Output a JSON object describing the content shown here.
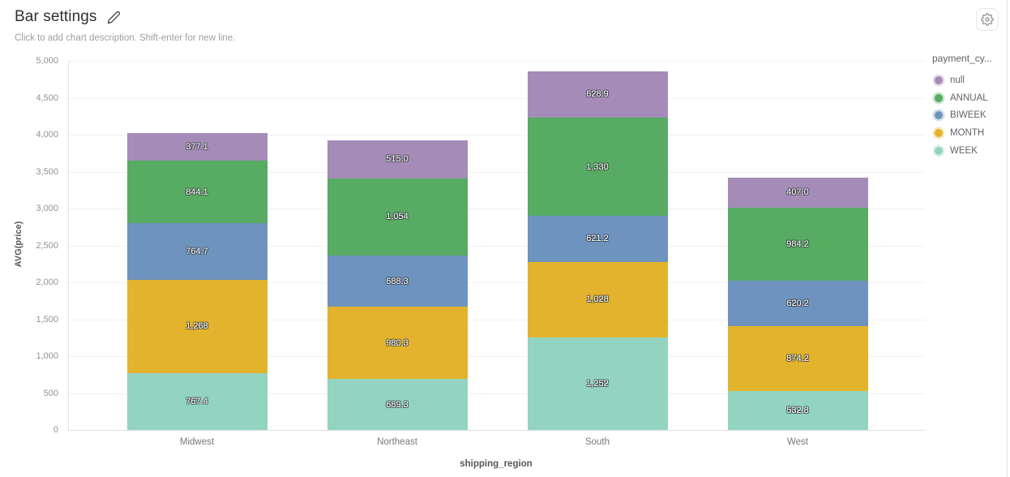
{
  "header": {
    "title": "Bar settings",
    "description": "Click to add chart description. Shift-enter for new line."
  },
  "toolbar": {
    "settings_icon": "gear-icon",
    "edit_icon": "pencil-icon"
  },
  "legend": {
    "title": "payment_cy...",
    "position": "right",
    "items": [
      {
        "label": "null",
        "color": "#a58cb8"
      },
      {
        "label": "ANNUAL",
        "color": "#57ab63"
      },
      {
        "label": "BIWEEK",
        "color": "#6e93be"
      },
      {
        "label": "MONTH",
        "color": "#e3b32d"
      },
      {
        "label": "WEEK",
        "color": "#92d4c0"
      }
    ]
  },
  "chart_data": {
    "type": "bar",
    "stacked": true,
    "title": "Bar settings",
    "categories": [
      "Midwest",
      "Northeast",
      "South",
      "West"
    ],
    "xlabel": "shipping_region",
    "ylabel": "AVG(price)",
    "ylim": [
      0,
      5000
    ],
    "ytick_step": 500,
    "grid": true,
    "legend_position": "right",
    "series": [
      {
        "name": "WEEK",
        "color": "#92d4c0",
        "values": [
          767.4,
          689.3,
          1252,
          532.8
        ],
        "labels": [
          "767.4",
          "689.3",
          "1,252",
          "532.8"
        ]
      },
      {
        "name": "MONTH",
        "color": "#e3b32d",
        "values": [
          1268,
          980.3,
          1028,
          874.2
        ],
        "labels": [
          "1,268",
          "980.3",
          "1,028",
          "874.2"
        ]
      },
      {
        "name": "BIWEEK",
        "color": "#6e93be",
        "values": [
          764.7,
          688.3,
          621.2,
          620.2
        ],
        "labels": [
          "764.7",
          "688.3",
          "621.2",
          "620.2"
        ]
      },
      {
        "name": "ANNUAL",
        "color": "#57ab63",
        "values": [
          844.1,
          1054,
          1330,
          984.2
        ],
        "labels": [
          "844.1",
          "1,054",
          "1,330",
          "984.2"
        ]
      },
      {
        "name": "null",
        "color": "#a58cb8",
        "values": [
          377.1,
          515.0,
          628.9,
          407.0
        ],
        "labels": [
          "377.1",
          "515.0",
          "628.9",
          "407.0"
        ]
      }
    ],
    "totals": [
      4021.3,
      3926.9,
      4860.1,
      3418.4
    ]
  }
}
